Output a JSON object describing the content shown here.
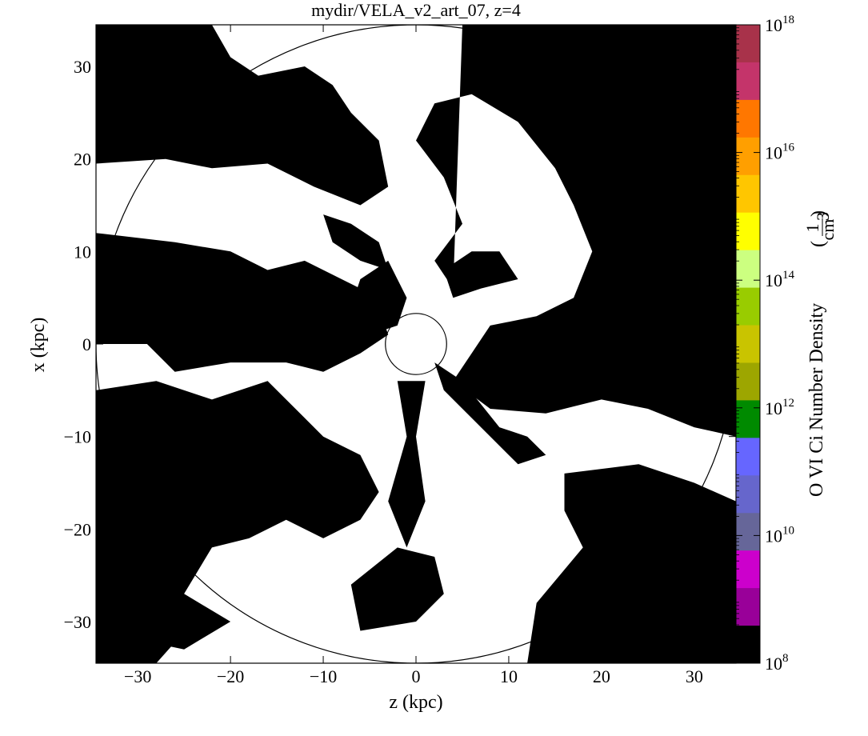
{
  "chart_data": {
    "type": "heatmap",
    "title": "mydir/VELA_v2_art_07, z=4",
    "xlabel": "z  (kpc)",
    "ylabel": "x  (kpc)",
    "xlim": [
      -34.5,
      34.5
    ],
    "ylim": [
      -34.5,
      34.5
    ],
    "x_ticks": [
      -30,
      -20,
      -10,
      0,
      10,
      20,
      30
    ],
    "y_ticks": [
      30,
      20,
      10,
      0,
      -10,
      -20,
      -30
    ],
    "x_tick_labels": [
      "−30",
      "−20",
      "−10",
      "0",
      "10",
      "20",
      "30"
    ],
    "y_tick_labels": [
      "30",
      "20",
      "10",
      "0",
      "−10",
      "−20",
      "−30"
    ],
    "field": "O VI Ci Number Density",
    "units": "1/cm^3",
    "circles_radius_kpc": [
      3.3,
      34.5
    ],
    "background_color": "#000000",
    "foreground_color": "#ffffff",
    "colorbar": {
      "label": "O VI Ci Number Density",
      "unit_numerator": "1",
      "unit_denominator": "cm",
      "unit_power": "3",
      "scale": "log",
      "range": [
        100000000.0,
        1e+18
      ],
      "tick_labels": [
        {
          "base": "10",
          "exp": "18",
          "value": 18
        },
        {
          "base": "10",
          "exp": "16",
          "value": 16
        },
        {
          "base": "10",
          "exp": "14",
          "value": 14
        },
        {
          "base": "10",
          "exp": "12",
          "value": 12
        },
        {
          "base": "10",
          "exp": "10",
          "value": 10
        },
        {
          "base": "10",
          "exp": "8",
          "value": 8
        }
      ],
      "bands_top_to_bottom": [
        "#a8324a",
        "#c4346a",
        "#ff7700",
        "#ff9f00",
        "#ffc600",
        "#ffff00",
        "#ccff80",
        "#99cc00",
        "#c9c400",
        "#9da600",
        "#008a00",
        "#6666ff",
        "#6666cc",
        "#666699",
        "#cc00cc",
        "#990099",
        "#000000"
      ]
    }
  }
}
